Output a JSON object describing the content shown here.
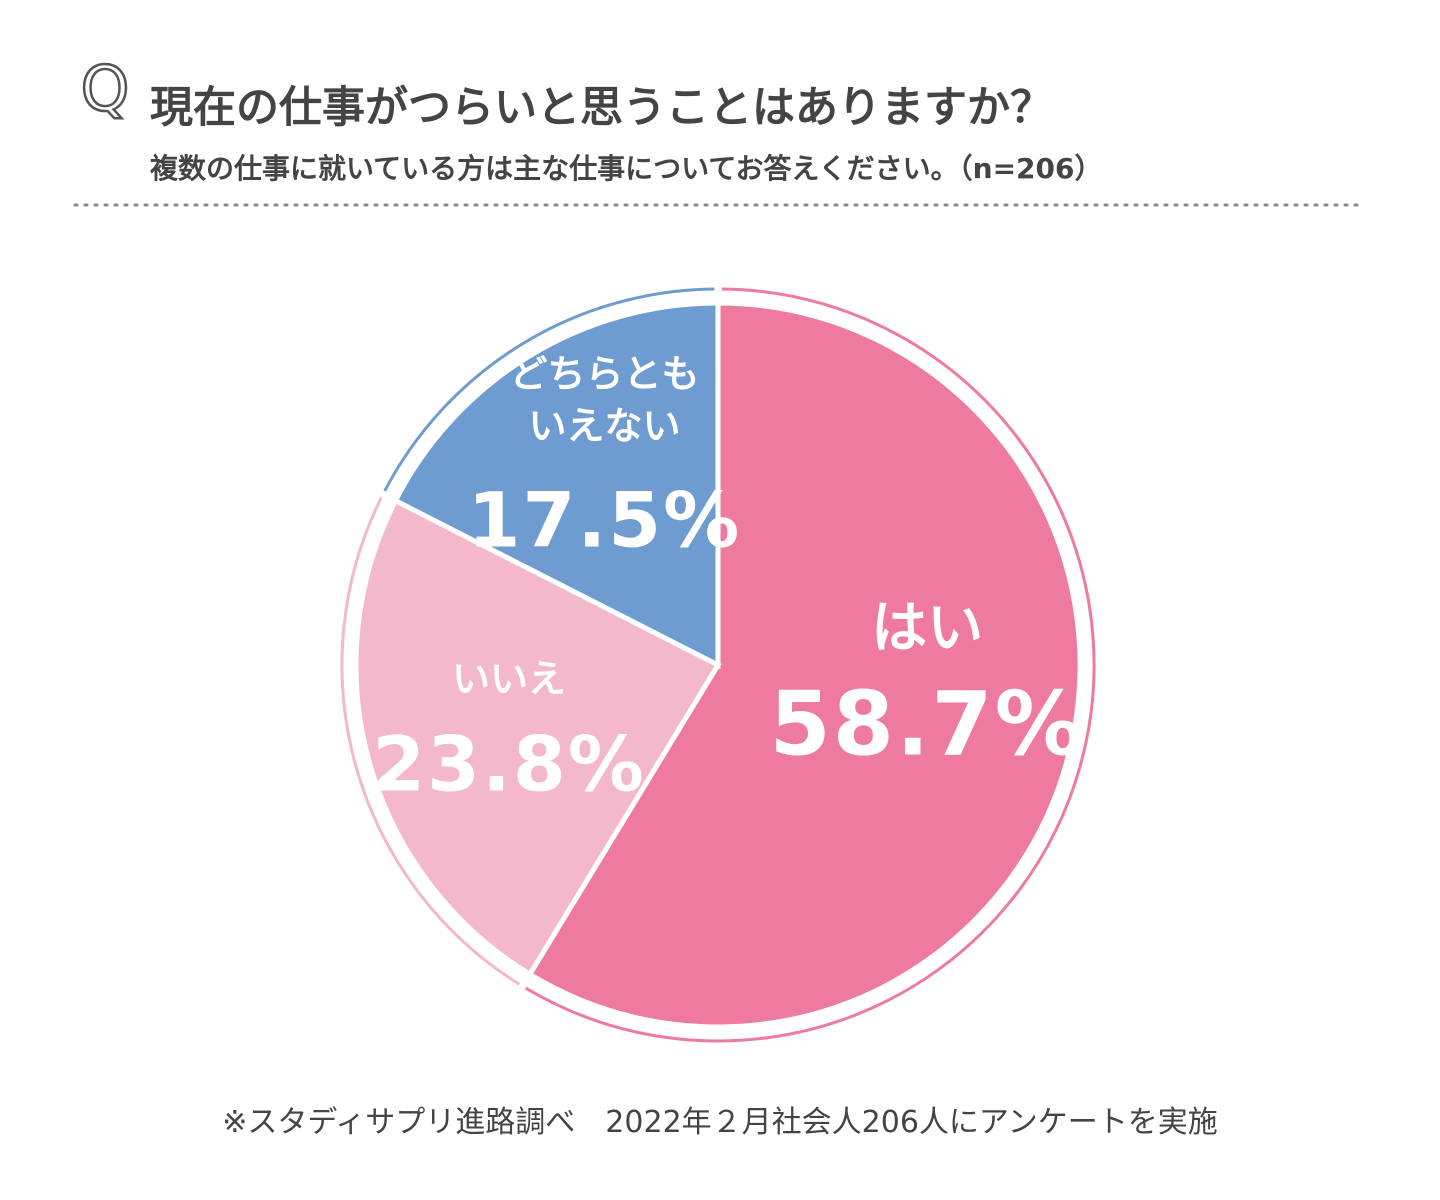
{
  "chart_data": {
    "type": "pie",
    "icon": "Q",
    "title": "現在の仕事がつらいと思うことはありますか？",
    "subtitle": "複数の仕事に就いている方は主な仕事についてお答えください。（n=206）",
    "categories": [
      "はい",
      "いいえ",
      "どちらとも\nいえない"
    ],
    "values": [
      58.7,
      23.8,
      17.5
    ],
    "value_labels": [
      "58.7%",
      "23.8%",
      "17.5%"
    ],
    "colors": [
      "#ee7aa0",
      "#f4b8cc",
      "#6e9bd0"
    ],
    "footnote": "※スタディサプリ進路調べ　2022年２月社会人206人にアンケートを実施"
  }
}
